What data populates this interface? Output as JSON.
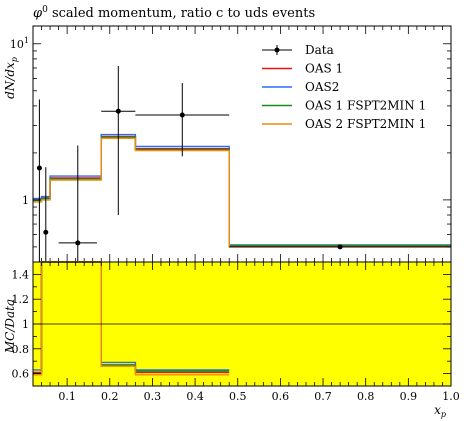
{
  "chart_data": [
    {
      "panel": "main",
      "type": "line",
      "title": "φ⁰ scaled momentum, ratio c to uds events",
      "title_symbol": "φ",
      "title_superscript": "0",
      "title_rest": " scaled momentum, ratio c to uds events",
      "ylabel": "dN/dx_p",
      "ylabel_parts": [
        "dN/d",
        "x",
        "p"
      ],
      "yscale": "log",
      "xlim": [
        0.02,
        1.0
      ],
      "ylim": [
        0.4,
        13
      ],
      "ytick_labels": [
        {
          "base": "10",
          "exp": "1",
          "value": 10
        },
        {
          "base": "1",
          "exp": "",
          "value": 1
        }
      ],
      "legend_position": "top-right",
      "series": [
        {
          "name": "Data",
          "color": "#000000",
          "style": "points",
          "points": [
            {
              "x": 0.035,
              "y": 1.6,
              "xerr": [
                0.005,
                0.005
              ],
              "yerr": [
                1.2,
                2.8
              ]
            },
            {
              "x": 0.05,
              "y": 0.62,
              "xerr": [
                0.005,
                0.005
              ],
              "yerr": [
                0.45,
                1.0
              ]
            },
            {
              "x": 0.125,
              "y": 0.53,
              "xerr": [
                0.045,
                0.045
              ],
              "yerr": [
                0.4,
                1.7
              ]
            },
            {
              "x": 0.22,
              "y": 3.7,
              "xerr": [
                0.04,
                0.04
              ],
              "yerr": [
                2.9,
                3.5
              ]
            },
            {
              "x": 0.37,
              "y": 3.5,
              "xerr": [
                0.11,
                0.11
              ],
              "yerr": [
                1.6,
                2.1
              ]
            },
            {
              "x": 0.74,
              "y": 0.5,
              "xerr": [
                0.26,
                0.26
              ],
              "yerr": [
                0.01,
                0.01
              ]
            }
          ]
        },
        {
          "name": "OAS 1",
          "color": "#ee1111",
          "style": "step",
          "edges": [
            0.02,
            0.04,
            0.06,
            0.14,
            0.18,
            0.26,
            0.48,
            1.0
          ],
          "values": [
            1.0,
            1.03,
            1.38,
            1.38,
            2.55,
            2.13,
            0.505
          ]
        },
        {
          "name": "OAS2",
          "color": "#2a6ef5",
          "style": "step",
          "edges": [
            0.02,
            0.04,
            0.06,
            0.14,
            0.18,
            0.26,
            0.48,
            1.0
          ],
          "values": [
            1.02,
            1.05,
            1.42,
            1.42,
            2.62,
            2.2,
            0.51
          ]
        },
        {
          "name": "OAS 1 FSPT2MIN 1",
          "color": "#1b8a1b",
          "style": "step",
          "edges": [
            0.02,
            0.04,
            0.06,
            0.14,
            0.18,
            0.26,
            0.48,
            1.0
          ],
          "values": [
            0.99,
            1.02,
            1.36,
            1.36,
            2.52,
            2.1,
            0.515
          ]
        },
        {
          "name": "OAS 2 FSPT2MIN 1",
          "color": "#ee8a14",
          "style": "step",
          "edges": [
            0.02,
            0.04,
            0.06,
            0.14,
            0.18,
            0.26,
            0.48,
            1.0
          ],
          "values": [
            0.97,
            1.0,
            1.34,
            1.34,
            2.48,
            2.07,
            0.5
          ]
        }
      ]
    },
    {
      "panel": "ratio",
      "type": "line",
      "xlabel": "x_p",
      "xlabel_parts": [
        "x",
        "p"
      ],
      "ylabel": "MC/Data",
      "xlim": [
        0.02,
        1.0
      ],
      "ylim": [
        0.5,
        1.5
      ],
      "band_color": "#ffff00",
      "reference_line": 1,
      "xticks": [
        0.1,
        0.2,
        0.3,
        0.4,
        0.5,
        0.6,
        0.7,
        0.8,
        0.9,
        1.0
      ],
      "xtick_labels": [
        "0.1",
        "0.2",
        "0.3",
        "0.4",
        "0.5",
        "0.6",
        "0.7",
        "0.8",
        "0.9",
        "1.0"
      ],
      "yticks": [
        0.6,
        0.8,
        1.0,
        1.2,
        1.4
      ],
      "ytick_labels": [
        "0.6",
        "0.8",
        "1",
        "1.2",
        "1.4"
      ],
      "series": [
        {
          "name": "OAS 1",
          "color": "#ee1111",
          "edges": [
            0.02,
            0.04,
            0.06,
            0.18,
            0.26,
            0.48
          ],
          "values": [
            0.61,
            2.0,
            2.0,
            0.67,
            0.61
          ]
        },
        {
          "name": "OAS2",
          "color": "#2a6ef5",
          "edges": [
            0.02,
            0.04,
            0.06,
            0.18,
            0.26,
            0.48
          ],
          "values": [
            0.63,
            2.0,
            2.0,
            0.69,
            0.63
          ]
        },
        {
          "name": "OAS 1 FSPT2MIN 1",
          "color": "#1b8a1b",
          "edges": [
            0.02,
            0.04,
            0.06,
            0.18,
            0.26,
            0.48
          ],
          "values": [
            0.6,
            2.0,
            2.0,
            0.67,
            0.62
          ]
        },
        {
          "name": "OAS 2 FSPT2MIN 1",
          "color": "#ee8a14",
          "edges": [
            0.02,
            0.04,
            0.06,
            0.18,
            0.26,
            0.48
          ],
          "values": [
            0.59,
            2.0,
            2.0,
            0.66,
            0.59
          ]
        }
      ]
    }
  ]
}
